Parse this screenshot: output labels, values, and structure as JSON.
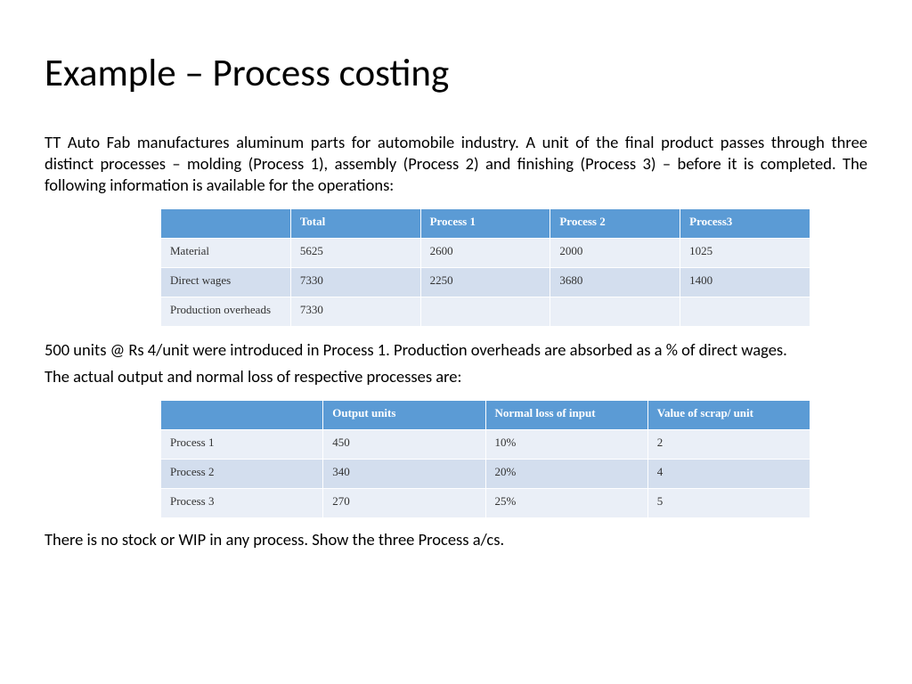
{
  "title": "Example – Process costing",
  "para1": "TT Auto Fab manufactures aluminum parts for automobile industry. A unit of the final product passes through three distinct processes – molding (Process 1), assembly (Process 2) and finishing (Process 3) – before it is completed. The following information is available for the operations:",
  "table1": {
    "headers": [
      "",
      "Total",
      "Process 1",
      "Process 2",
      "Process3"
    ],
    "rows": [
      [
        "Material",
        "5625",
        "2600",
        "2000",
        "1025"
      ],
      [
        "Direct wages",
        "7330",
        "2250",
        "3680",
        "1400"
      ],
      [
        "Production overheads",
        "7330",
        "",
        "",
        ""
      ]
    ],
    "header_bg": "#5b9bd5",
    "header_text": "#ffffff",
    "row_light_bg": "#eaeff7",
    "row_mid_bg": "#d3deee"
  },
  "para2": "500 units @ Rs 4/unit were introduced in Process 1. Production overheads are absorbed as a % of direct wages.",
  "para3": " The actual output and normal loss of respective processes are:",
  "table2": {
    "headers": [
      "",
      "Output units",
      "Normal loss of input",
      "Value of scrap/ unit"
    ],
    "rows": [
      [
        "Process 1",
        "450",
        "10%",
        "2"
      ],
      [
        "Process 2",
        "340",
        "20%",
        "4"
      ],
      [
        "Process 3",
        "270",
        "25%",
        "5"
      ]
    ],
    "header_bg": "#5b9bd5",
    "header_text": "#ffffff",
    "row_light_bg": "#eaeff7",
    "row_mid_bg": "#d3deee"
  },
  "para4": "There is no stock or WIP in any process. Show the three Process a/cs.",
  "styling": {
    "background": "#ffffff",
    "title_fontsize": 43,
    "body_fontsize": 18.5,
    "table_fontsize": 13,
    "body_font": "Calibri",
    "table_font": "Times New Roman"
  }
}
